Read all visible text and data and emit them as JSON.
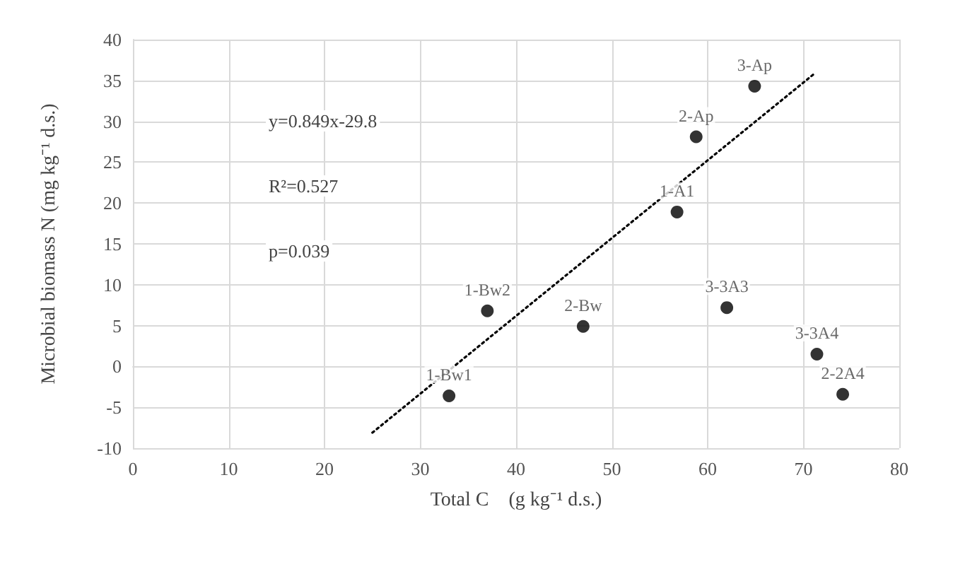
{
  "chart_data": {
    "type": "scatter",
    "xlabel": "Total C　(g kg⁻¹ d.s.)",
    "ylabel": "Microbial biomass N (mg kg⁻¹ d.s.)",
    "xlim": [
      0,
      80
    ],
    "xticks": [
      0,
      10,
      20,
      30,
      40,
      50,
      60,
      70,
      80
    ],
    "ylim": [
      -10,
      40
    ],
    "yticks": [
      -10,
      -5,
      0,
      5,
      10,
      15,
      20,
      25,
      30,
      35,
      40
    ],
    "grid": true,
    "marker": "circle",
    "annotations": [
      "y=0.849x-29.8",
      "R²=0.527",
      "p=0.039",
      {
        "text": "1-Bw1",
        "x": 33,
        "y": -3.6
      },
      {
        "text": "1-Bw2",
        "x": 37,
        "y": 6.8
      },
      {
        "text": "2-Bw",
        "x": 47,
        "y": 4.9
      },
      {
        "text": "1-A1",
        "x": 56.8,
        "y": 18.9
      },
      {
        "text": "2-Ap",
        "x": 58.8,
        "y": 28.1
      },
      {
        "text": "3-Ap",
        "x": 64.9,
        "y": 34.3
      },
      {
        "text": "3-3A3",
        "x": 62,
        "y": 7.2
      },
      {
        "text": "3-3A4",
        "x": 71.4,
        "y": 1.5
      },
      {
        "text": "2-2A4",
        "x": 74.1,
        "y": -3.4
      }
    ],
    "series": [
      {
        "color": "#000000",
        "x": [
          33,
          37,
          47,
          56.8,
          58.8,
          64.9,
          62,
          71.4,
          74.1
        ],
        "values": [
          -3.6,
          6.8,
          4.9,
          18.9,
          28.1,
          34.3,
          7.2,
          1.5,
          -3.4
        ]
      },
      {
        "type": "line",
        "color": "#000000",
        "line_style": "dotted",
        "marker": "none",
        "x": [
          25,
          71
        ],
        "values": [
          -8.1,
          35.7
        ]
      }
    ]
  }
}
